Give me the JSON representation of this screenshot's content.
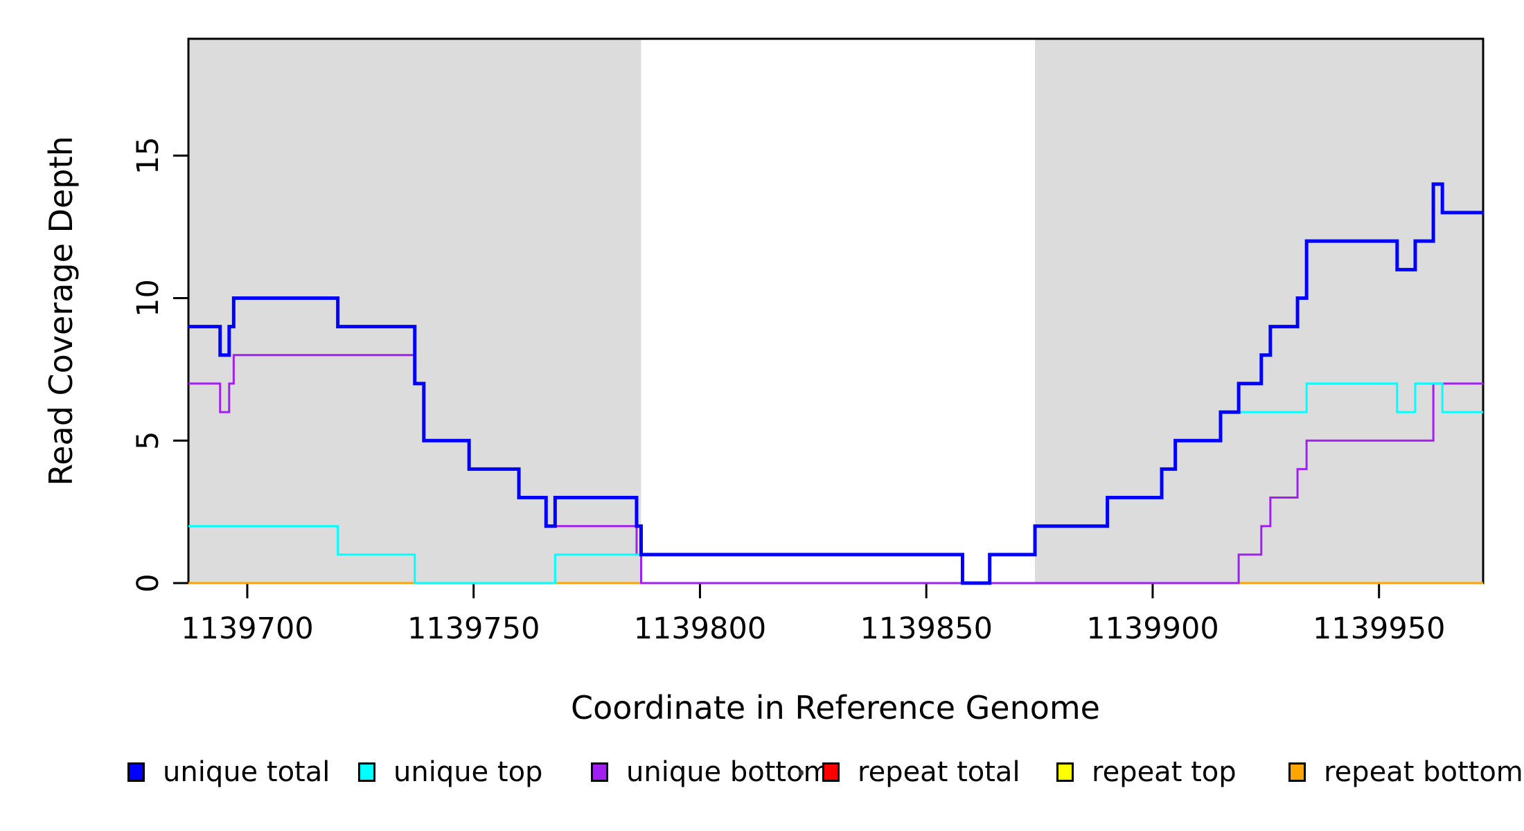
{
  "chart_data": {
    "type": "line",
    "style": "step",
    "title": "",
    "xlabel": "Coordinate in Reference Genome",
    "ylabel": "Read Coverage Depth",
    "xlim": [
      1139687,
      1139973
    ],
    "ylim": [
      0,
      19.1
    ],
    "x_ticks": [
      1139700,
      1139750,
      1139800,
      1139850,
      1139900,
      1139950
    ],
    "y_ticks": [
      0,
      5,
      10,
      15
    ],
    "grid": false,
    "shade_color": "#DCDCDC",
    "shaded_regions": [
      {
        "label": "repeat-region-left",
        "x0": 1139687,
        "x1": 1139787
      },
      {
        "label": "repeat-region-right",
        "x0": 1139874,
        "x1": 1139973
      }
    ],
    "series": [
      {
        "name": "repeat total",
        "color": "#FF0000",
        "width": 3,
        "steps": [
          [
            1139687,
            0
          ],
          [
            1139973,
            0
          ]
        ]
      },
      {
        "name": "repeat top",
        "color": "#FFFF00",
        "width": 3,
        "steps": [
          [
            1139687,
            0
          ],
          [
            1139973,
            0
          ]
        ]
      },
      {
        "name": "repeat bottom",
        "color": "#FFA500",
        "width": 3,
        "steps": [
          [
            1139687,
            0
          ],
          [
            1139973,
            0
          ]
        ]
      },
      {
        "name": "unique bottom",
        "color": "#A020F0",
        "width": 3,
        "steps": [
          [
            1139687,
            7
          ],
          [
            1139694,
            6
          ],
          [
            1139696,
            7
          ],
          [
            1139697,
            8
          ],
          [
            1139737,
            7
          ],
          [
            1139739,
            5
          ],
          [
            1139749,
            4
          ],
          [
            1139760,
            3
          ],
          [
            1139766,
            2
          ],
          [
            1139786,
            1
          ],
          [
            1139787,
            0
          ],
          [
            1139919,
            1
          ],
          [
            1139924,
            2
          ],
          [
            1139926,
            3
          ],
          [
            1139932,
            4
          ],
          [
            1139934,
            5
          ],
          [
            1139962,
            7
          ],
          [
            1139973,
            7
          ]
        ]
      },
      {
        "name": "unique top",
        "color": "#00FFFF",
        "width": 3,
        "steps": [
          [
            1139687,
            2
          ],
          [
            1139720,
            1
          ],
          [
            1139737,
            0
          ],
          [
            1139768,
            1
          ],
          [
            1139858,
            0
          ],
          [
            1139864,
            1
          ],
          [
            1139874,
            2
          ],
          [
            1139890,
            3
          ],
          [
            1139902,
            4
          ],
          [
            1139905,
            5
          ],
          [
            1139915,
            6
          ],
          [
            1139934,
            7
          ],
          [
            1139954,
            6
          ],
          [
            1139958,
            7
          ],
          [
            1139964,
            6
          ],
          [
            1139973,
            6
          ]
        ]
      },
      {
        "name": "unique total",
        "color": "#0000FF",
        "width": 5,
        "steps": [
          [
            1139687,
            9
          ],
          [
            1139694,
            8
          ],
          [
            1139696,
            9
          ],
          [
            1139697,
            10
          ],
          [
            1139720,
            9
          ],
          [
            1139737,
            7
          ],
          [
            1139739,
            5
          ],
          [
            1139749,
            4
          ],
          [
            1139760,
            3
          ],
          [
            1139766,
            2
          ],
          [
            1139768,
            3
          ],
          [
            1139786,
            2
          ],
          [
            1139787,
            1
          ],
          [
            1139858,
            0
          ],
          [
            1139864,
            1
          ],
          [
            1139874,
            2
          ],
          [
            1139890,
            3
          ],
          [
            1139902,
            4
          ],
          [
            1139905,
            5
          ],
          [
            1139915,
            6
          ],
          [
            1139919,
            7
          ],
          [
            1139924,
            8
          ],
          [
            1139926,
            9
          ],
          [
            1139932,
            10
          ],
          [
            1139934,
            12
          ],
          [
            1139954,
            11
          ],
          [
            1139958,
            12
          ],
          [
            1139962,
            14
          ],
          [
            1139964,
            13
          ],
          [
            1139973,
            13
          ]
        ]
      }
    ],
    "legend": {
      "position": "bottom-horizontal",
      "items": [
        {
          "label": "unique total",
          "color": "#0000FF"
        },
        {
          "label": "unique top",
          "color": "#00FFFF"
        },
        {
          "label": "unique bottom",
          "color": "#A020F0"
        },
        {
          "label": "repeat total",
          "color": "#FF0000"
        },
        {
          "label": "repeat top",
          "color": "#FFFF00"
        },
        {
          "label": "repeat bottom",
          "color": "#FFA500"
        }
      ],
      "stray_mark_before_item": 3
    }
  }
}
